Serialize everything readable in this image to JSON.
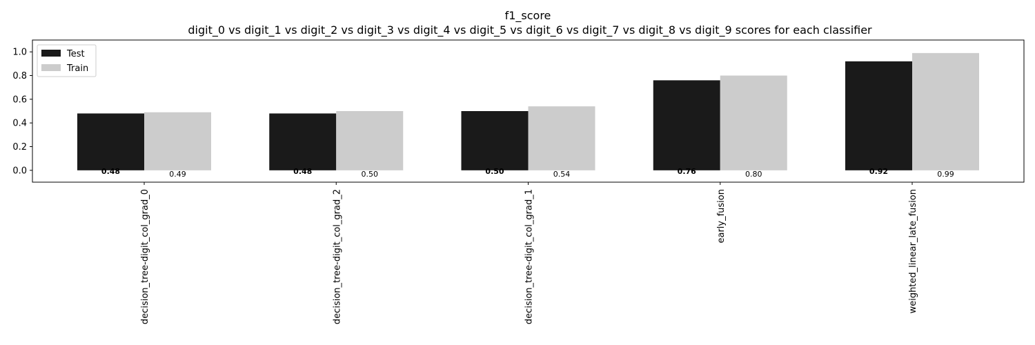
{
  "chart_data": {
    "type": "bar",
    "title": "f1_score",
    "subtitle": "digit_0 vs digit_1 vs digit_2 vs digit_3 vs digit_4 vs digit_5 vs digit_6 vs digit_7 vs digit_8 vs digit_9 scores for each classifier",
    "categories": [
      "decision_tree-digit_col_grad_0",
      "decision_tree-digit_col_grad_2",
      "decision_tree-digit_col_grad_1",
      "early_fusion",
      "weighted_linear_late_fusion"
    ],
    "series": [
      {
        "name": "Test",
        "color": "#1a1a1a",
        "values": [
          0.48,
          0.48,
          0.5,
          0.76,
          0.92
        ]
      },
      {
        "name": "Train",
        "color": "#cccccc",
        "values": [
          0.49,
          0.5,
          0.54,
          0.8,
          0.99
        ]
      }
    ],
    "ylim": [
      -0.1,
      1.1
    ],
    "yticks": [
      "0.0",
      "0.2",
      "0.4",
      "0.6",
      "0.8",
      "1.0"
    ],
    "legend": "top-left",
    "grid": false
  }
}
